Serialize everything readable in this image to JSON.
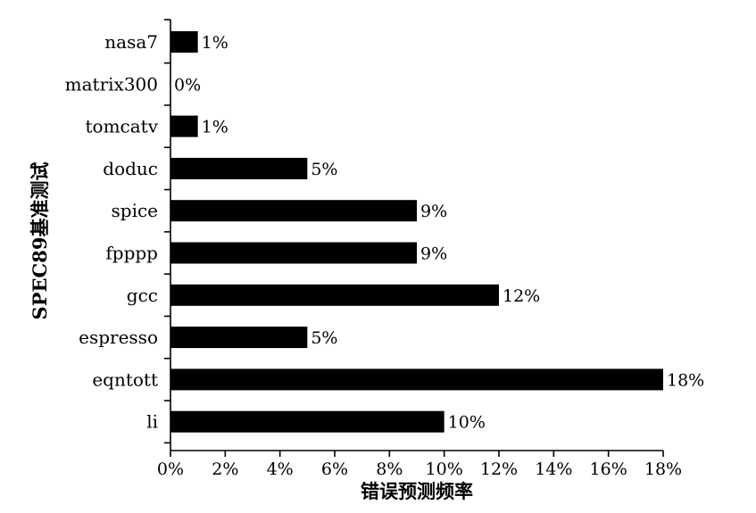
{
  "chart_data": {
    "type": "bar",
    "orientation": "horizontal",
    "title": "",
    "xlabel": "错误预测频率",
    "ylabel": "SPEC89基准测试",
    "categories": [
      "nasa7",
      "matrix300",
      "tomcatv",
      "doduc",
      "spice",
      "fpppp",
      "gcc",
      "espresso",
      "eqntott",
      "li"
    ],
    "values": [
      1,
      0,
      1,
      5,
      9,
      9,
      12,
      5,
      18,
      10
    ],
    "value_labels": [
      "1%",
      "0%",
      "1%",
      "5%",
      "9%",
      "9%",
      "12%",
      "5%",
      "18%",
      "10%"
    ],
    "xlim": [
      0,
      18
    ],
    "xticks": [
      0,
      2,
      4,
      6,
      8,
      10,
      12,
      14,
      16,
      18
    ],
    "xtick_labels": [
      "0%",
      "2%",
      "4%",
      "6%",
      "8%",
      "10%",
      "12%",
      "14%",
      "16%",
      "18%"
    ],
    "grid": false,
    "legend": "none",
    "bar_color": "#000000"
  }
}
